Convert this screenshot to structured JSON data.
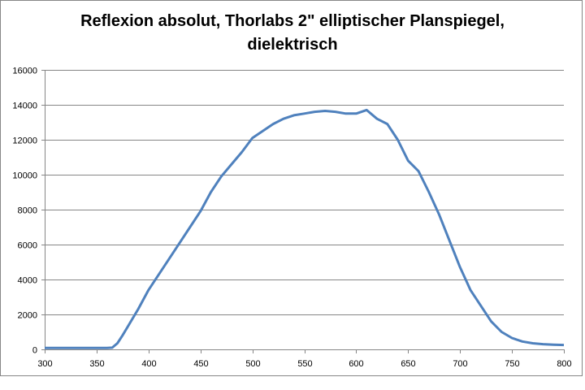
{
  "chart_data": {
    "type": "line",
    "title_line1": "Reflexion absolut, Thorlabs 2\"  elliptischer Planspiegel,",
    "title_line2": "dielektrisch",
    "xlabel": "",
    "ylabel": "",
    "xlim": [
      300,
      800
    ],
    "ylim": [
      0,
      16000
    ],
    "xticks": [
      300,
      350,
      400,
      450,
      500,
      550,
      600,
      650,
      700,
      750,
      800
    ],
    "yticks": [
      0,
      2000,
      4000,
      6000,
      8000,
      10000,
      12000,
      14000,
      16000
    ],
    "grid": "horizontal",
    "legend": "none",
    "line_color": "#4F81BD",
    "series": [
      {
        "x": [
          300,
          310,
          320,
          330,
          340,
          350,
          360,
          365,
          370,
          375,
          380,
          390,
          400,
          410,
          420,
          430,
          440,
          450,
          460,
          470,
          480,
          490,
          500,
          510,
          520,
          530,
          540,
          550,
          560,
          570,
          580,
          590,
          600,
          610,
          620,
          630,
          640,
          650,
          660,
          670,
          680,
          690,
          700,
          710,
          720,
          730,
          740,
          750,
          760,
          770,
          780,
          790,
          800
        ],
        "values": [
          80,
          80,
          80,
          80,
          80,
          80,
          80,
          100,
          350,
          800,
          1300,
          2300,
          3400,
          4300,
          5200,
          6100,
          7000,
          7900,
          9000,
          9900,
          10600,
          11300,
          12100,
          12500,
          12900,
          13200,
          13400,
          13500,
          13600,
          13650,
          13600,
          13500,
          13500,
          13700,
          13200,
          12900,
          12000,
          10800,
          10200,
          9000,
          7700,
          6200,
          4700,
          3400,
          2500,
          1600,
          1000,
          650,
          450,
          350,
          300,
          270,
          250
        ]
      }
    ]
  }
}
